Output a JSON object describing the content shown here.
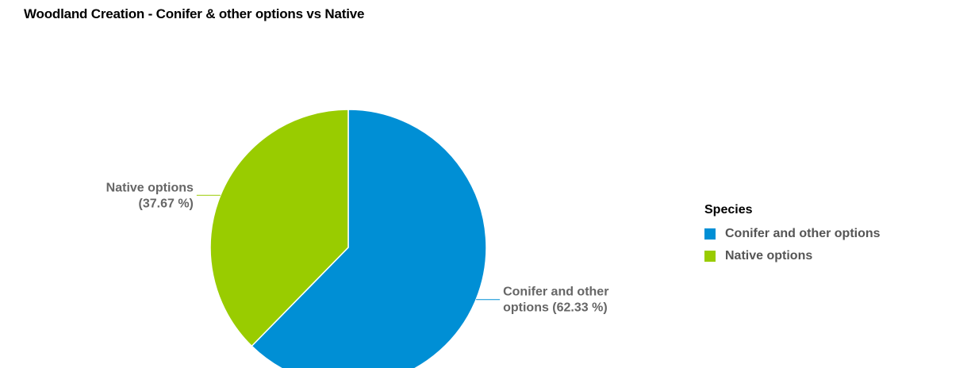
{
  "chart_data": {
    "type": "pie",
    "title": "Woodland Creation - Conifer & other options vs Native",
    "legend": {
      "title": "Species",
      "placement": "right"
    },
    "slices": [
      {
        "label": "Conifer and other options",
        "value": 62.33,
        "color": "#008fd5",
        "data_label_lines": [
          "Conifer and other",
          "options (62.33 %)"
        ]
      },
      {
        "label": "Native options",
        "value": 37.67,
        "color": "#99cc00",
        "data_label_lines": [
          "Native options",
          "(37.67 %)"
        ]
      }
    ]
  }
}
